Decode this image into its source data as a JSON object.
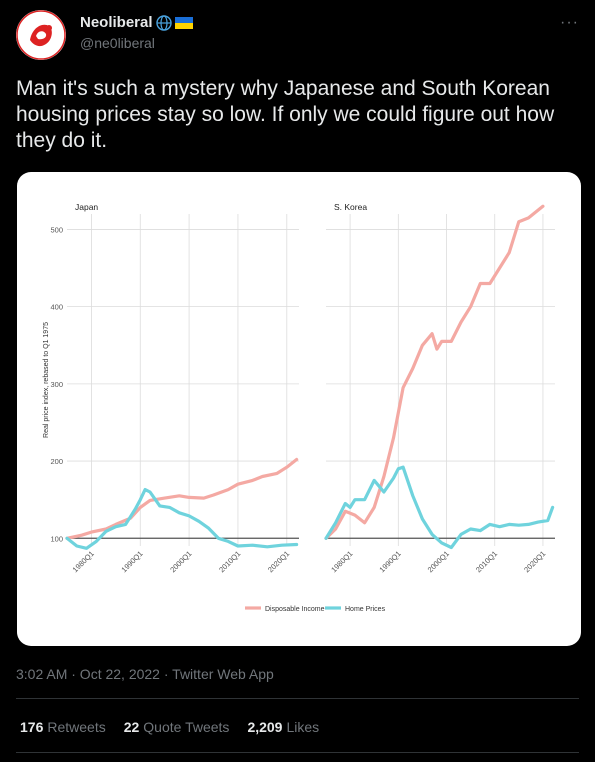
{
  "tweet": {
    "display_name": "Neoliberal",
    "handle": "@ne0liberal",
    "text": "Man it's such a mystery why Japanese and South Korean housing prices stay so low.  If only we could figure out how they do it.",
    "timestamp": "3:02 AM · Oct 22, 2022 · Twitter Web App",
    "stats": {
      "retweets_count": "176",
      "retweets_label": "Retweets",
      "quotes_count": "22",
      "quotes_label": "Quote Tweets",
      "likes_count": "2,209",
      "likes_label": "Likes"
    },
    "icons": [
      "globe-icon",
      "ukraine-flag-icon",
      "more-icon"
    ],
    "colors": {
      "income": "#f4a9a3",
      "home": "#6fd3dd",
      "baseline": "#555555"
    }
  },
  "chart_data": {
    "type": "line",
    "ylabel": "Real price index, rebased to Q1 1975",
    "ylim": [
      90,
      520
    ],
    "yticks": [
      100,
      200,
      300,
      400,
      500
    ],
    "xticks": [
      "1980Q1",
      "1990Q1",
      "2000Q1",
      "2010Q1",
      "2020Q1"
    ],
    "xlim": [
      1975,
      2022.5
    ],
    "legend": [
      "Disposable Income",
      "Home Prices"
    ],
    "legend_position": "bottom",
    "grid": true,
    "panels": [
      {
        "title": "Japan",
        "series": [
          {
            "name": "Disposable Income",
            "x": [
              1975,
              1978,
              1980,
              1983,
              1985,
              1988,
              1990,
              1992,
              1995,
              1998,
              2000,
              2003,
              2005,
              2008,
              2010,
              2013,
              2015,
              2018,
              2020,
              2022
            ],
            "values": [
              100,
              104,
              108,
              112,
              118,
              126,
              140,
              149,
              152,
              155,
              153,
              152,
              156,
              163,
              170,
              175,
              180,
              184,
              192,
              202
            ]
          },
          {
            "name": "Home Prices",
            "x": [
              1975,
              1977,
              1979,
              1981,
              1983,
              1985,
              1987,
              1989,
              1990,
              1991,
              1992,
              1994,
              1996,
              1998,
              2000,
              2002,
              2004,
              2006,
              2008,
              2010,
              2013,
              2016,
              2019,
              2022
            ],
            "values": [
              100,
              90,
              87,
              96,
              109,
              115,
              118,
              138,
              150,
              163,
              160,
              142,
              140,
              133,
              129,
              122,
              113,
              100,
              96,
              90,
              91,
              89,
              91,
              92
            ]
          }
        ]
      },
      {
        "title": "S. Korea",
        "series": [
          {
            "name": "Disposable Income",
            "x": [
              1975,
              1977,
              1979,
              1981,
              1983,
              1985,
              1987,
              1989,
              1991,
              1993,
              1995,
              1997,
              1998,
              1999,
              2001,
              2003,
              2005,
              2007,
              2009,
              2011,
              2013,
              2015,
              2017,
              2018,
              2020
            ],
            "values": [
              100,
              112,
              135,
              130,
              120,
              140,
              180,
              230,
              295,
              320,
              350,
              365,
              345,
              355,
              355,
              380,
              400,
              430,
              430,
              450,
              470,
              510,
              515,
              520,
              530
            ]
          },
          {
            "name": "Home Prices",
            "x": [
              1975,
              1977,
              1979,
              1980,
              1981,
              1983,
              1985,
              1987,
              1989,
              1990,
              1991,
              1993,
              1995,
              1997,
              1999,
              2001,
              2003,
              2005,
              2007,
              2009,
              2011,
              2013,
              2015,
              2017,
              2019,
              2021,
              2022
            ],
            "values": [
              100,
              120,
              145,
              140,
              150,
              150,
              175,
              160,
              178,
              190,
              192,
              155,
              125,
              105,
              94,
              88,
              105,
              112,
              110,
              118,
              115,
              118,
              117,
              118,
              121,
              123,
              140
            ]
          }
        ]
      }
    ]
  }
}
